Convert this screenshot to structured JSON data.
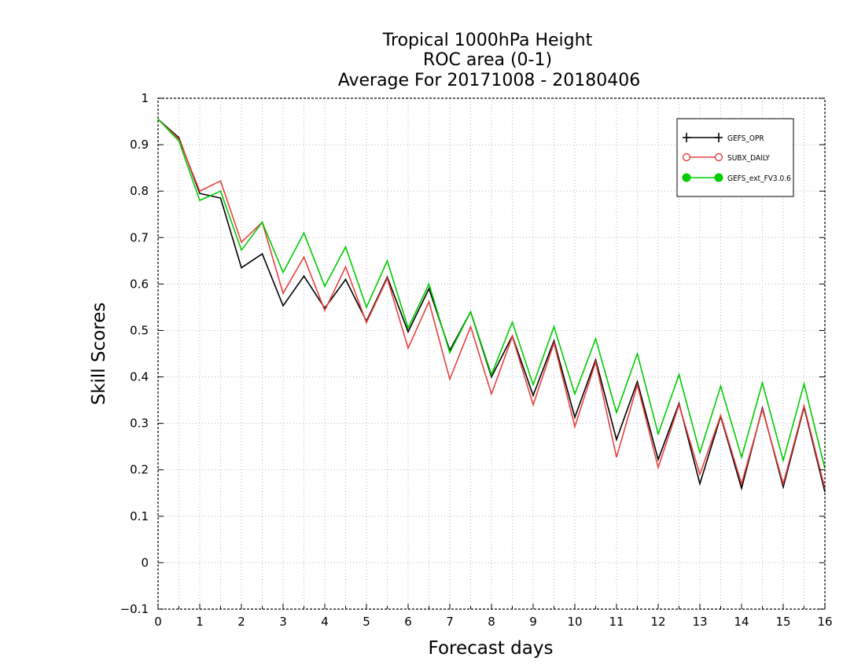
{
  "chart_data": {
    "type": "line",
    "title_lines": [
      "Tropical 1000hPa Height",
      "ROC area (0-1)",
      "Average For 20171008 - 20180406"
    ],
    "xlabel": "Forecast days",
    "ylabel": "Skill Scores",
    "xlim": [
      0,
      16
    ],
    "ylim": [
      -0.1,
      1
    ],
    "xticks": [
      0,
      1,
      2,
      3,
      4,
      5,
      6,
      7,
      8,
      9,
      10,
      11,
      12,
      13,
      14,
      15,
      16
    ],
    "yticks": [
      -0.1,
      0,
      0.1,
      0.2,
      0.3,
      0.4,
      0.5,
      0.6,
      0.7,
      0.8,
      0.9,
      1
    ],
    "ytick_labels": [
      "−0.1",
      "0",
      "0.1",
      "0.2",
      "0.3",
      "0.4",
      "0.5",
      "0.6",
      "0.7",
      "0.8",
      "0.9",
      "1"
    ],
    "grid": true,
    "legend_position": "top-right",
    "x": [
      0,
      0.5,
      1,
      1.5,
      2,
      2.5,
      3,
      3.5,
      4,
      4.5,
      5,
      5.5,
      6,
      6.5,
      7,
      7.5,
      8,
      8.5,
      9,
      9.5,
      10,
      10.5,
      11,
      11.5,
      12,
      12.5,
      13,
      13.5,
      14,
      14.5,
      15,
      15.5,
      16
    ],
    "series": [
      {
        "name": "GEFS_OPR",
        "color": "#000000",
        "marker": "plus",
        "values": [
          0.955,
          0.915,
          0.795,
          0.785,
          0.635,
          0.665,
          0.553,
          0.617,
          0.548,
          0.61,
          0.52,
          0.615,
          0.497,
          0.59,
          0.457,
          0.54,
          0.4,
          0.488,
          0.36,
          0.478,
          0.313,
          0.437,
          0.265,
          0.39,
          0.222,
          0.343,
          0.17,
          0.315,
          0.16,
          0.333,
          0.163,
          0.335,
          0.152
        ]
      },
      {
        "name": "SUBX_DAILY",
        "color": "#e84040",
        "marker": "open-circle",
        "values": [
          0.955,
          0.912,
          0.8,
          0.822,
          0.69,
          0.733,
          0.58,
          0.658,
          0.543,
          0.637,
          0.517,
          0.612,
          0.462,
          0.562,
          0.395,
          0.508,
          0.363,
          0.487,
          0.34,
          0.473,
          0.293,
          0.432,
          0.227,
          0.383,
          0.205,
          0.34,
          0.19,
          0.317,
          0.17,
          0.33,
          0.17,
          0.338,
          0.16
        ]
      },
      {
        "name": "GEFS_ext_FV3.0.6",
        "color": "#00cc00",
        "marker": "filled-circle",
        "values": [
          0.955,
          0.908,
          0.78,
          0.8,
          0.673,
          0.733,
          0.625,
          0.71,
          0.595,
          0.68,
          0.55,
          0.65,
          0.505,
          0.6,
          0.452,
          0.54,
          0.405,
          0.518,
          0.383,
          0.508,
          0.363,
          0.482,
          0.323,
          0.45,
          0.277,
          0.405,
          0.237,
          0.38,
          0.227,
          0.387,
          0.22,
          0.385,
          0.203
        ]
      }
    ]
  }
}
